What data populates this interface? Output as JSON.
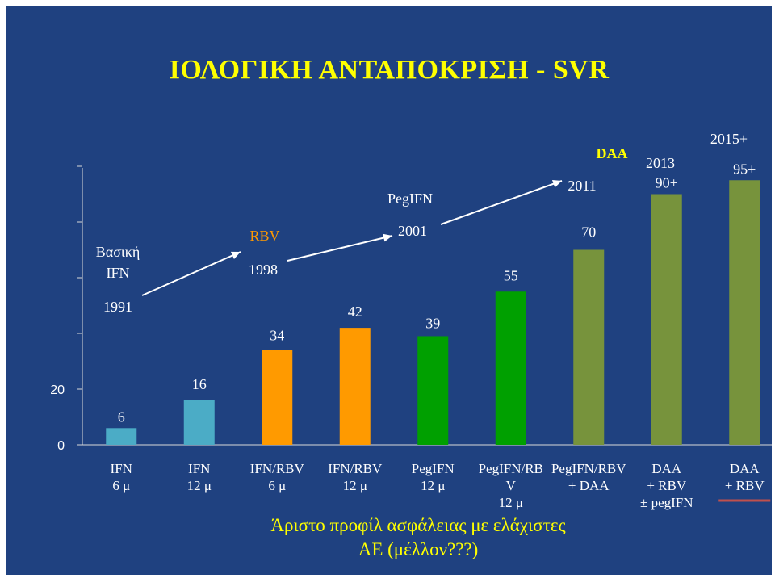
{
  "title": "ΙΟΛΟΓΙΚΗ ΑΝΤΑΠΟΚΡΙΣΗ - SVR",
  "note": [
    "Άριστο προφίλ ασφάλειας με ελάχιστες",
    "ΑΕ (μέλλον???)"
  ],
  "chart_data": {
    "type": "bar",
    "categories": [
      [
        "IFN",
        "6 μ"
      ],
      [
        "IFN",
        "12 μ"
      ],
      [
        "IFN/RBV",
        "6 μ"
      ],
      [
        "IFN/RBV",
        "12 μ"
      ],
      [
        "PegIFN",
        "12 μ"
      ],
      [
        "PegIFN/RB",
        "V",
        "12 μ"
      ],
      [
        "PegIFN/RBV",
        "+ DAA"
      ],
      [
        "DAA",
        "+ RBV",
        "± pegIFN"
      ],
      [
        "DAA",
        "+ RBV"
      ]
    ],
    "values": [
      6,
      16,
      34,
      42,
      39,
      55,
      70,
      90,
      95
    ],
    "value_labels": [
      "6",
      "16",
      "34",
      "42",
      "39",
      "55",
      "70",
      "90+",
      "95+"
    ],
    "bar_colors": [
      "#4bacc6",
      "#4bacc6",
      "#ff9a00",
      "#ff9a00",
      "#00a000",
      "#00a000",
      "#77933c",
      "#77933c",
      "#77933c"
    ],
    "yticks": [
      "0",
      "20"
    ],
    "ylim": [
      0,
      100
    ],
    "legend": "none",
    "annotations": {
      "era_labels": [
        {
          "text": "Βασική",
          "color": "#ffffff"
        },
        {
          "text": "IFN",
          "color": "#ffffff"
        },
        {
          "text": "RBV",
          "color": "#ff9a00"
        },
        {
          "text": "PegIFN",
          "color": "#ffffff"
        },
        {
          "text": "DAA",
          "color": "#ffff00"
        }
      ],
      "years": [
        "1991",
        "1998",
        "2001",
        "2011",
        "2013",
        "2015+"
      ]
    }
  }
}
